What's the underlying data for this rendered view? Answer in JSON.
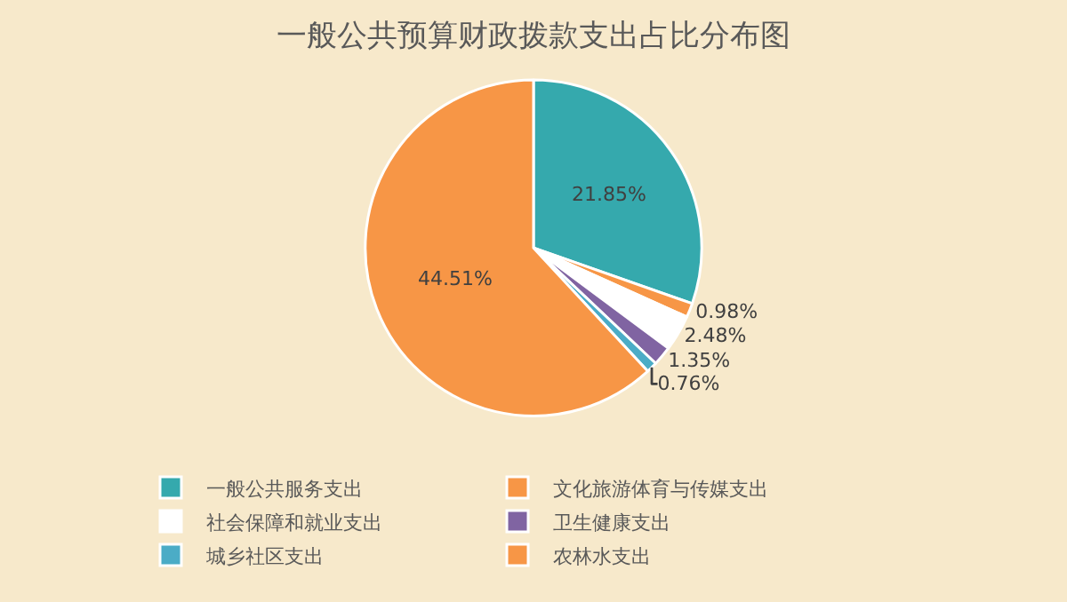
{
  "chart_data": {
    "type": "pie",
    "title": "一般公共预算财政拨款支出占比分布图",
    "categories": [
      "一般公共服务支出",
      "文化旅游体育与传媒支出",
      "社会保障和就业支出",
      "卫生健康支出",
      "城乡社区支出",
      "农林水支出"
    ],
    "values": [
      21.85,
      0.98,
      2.48,
      1.35,
      0.76,
      44.51
    ],
    "value_labels": [
      "21.85%",
      "0.98%",
      "2.48%",
      "1.35%",
      "0.76%",
      "44.51%"
    ],
    "colors": [
      "#35a9ad",
      "#f79646",
      "#ffffff",
      "#8064a2",
      "#4bacc6",
      "#f79646"
    ],
    "legend": "bottom"
  }
}
